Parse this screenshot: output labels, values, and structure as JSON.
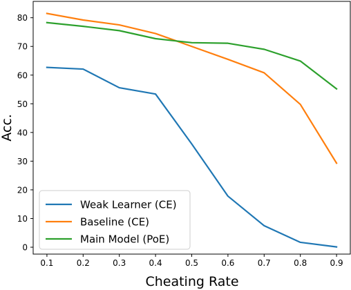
{
  "chart_data": {
    "type": "line",
    "title": "",
    "xlabel": "Cheating Rate",
    "ylabel": "Acc.",
    "x": [
      0.1,
      0.2,
      0.3,
      0.4,
      0.5,
      0.6,
      0.7,
      0.8,
      0.9
    ],
    "x_ticks": [
      "0.1",
      "0.2",
      "0.3",
      "0.4",
      "0.5",
      "0.6",
      "0.7",
      "0.8",
      "0.9"
    ],
    "y_ticks": [
      "0",
      "10",
      "20",
      "30",
      "40",
      "50",
      "60",
      "70",
      "80"
    ],
    "xlim": [
      0.062,
      0.938
    ],
    "ylim": [
      -2.4,
      85.7
    ],
    "grid": false,
    "legend_position": "lower-left",
    "series": [
      {
        "name": "Weak Learner  (CE)",
        "color": "#1f77b4",
        "values": [
          62.7,
          62.1,
          55.6,
          53.4,
          36,
          17.8,
          7.5,
          1.7,
          0.1
        ]
      },
      {
        "name": "Baseline (CE)",
        "color": "#ff7f0e",
        "values": [
          81.5,
          79.2,
          77.5,
          74.5,
          70,
          65.5,
          60.8,
          49.8,
          29.3
        ]
      },
      {
        "name": "Main Model (PoE)",
        "color": "#2ca02c",
        "values": [
          78.3,
          77,
          75.5,
          72.7,
          71.3,
          71.1,
          69,
          64.9,
          55.2
        ]
      }
    ]
  }
}
